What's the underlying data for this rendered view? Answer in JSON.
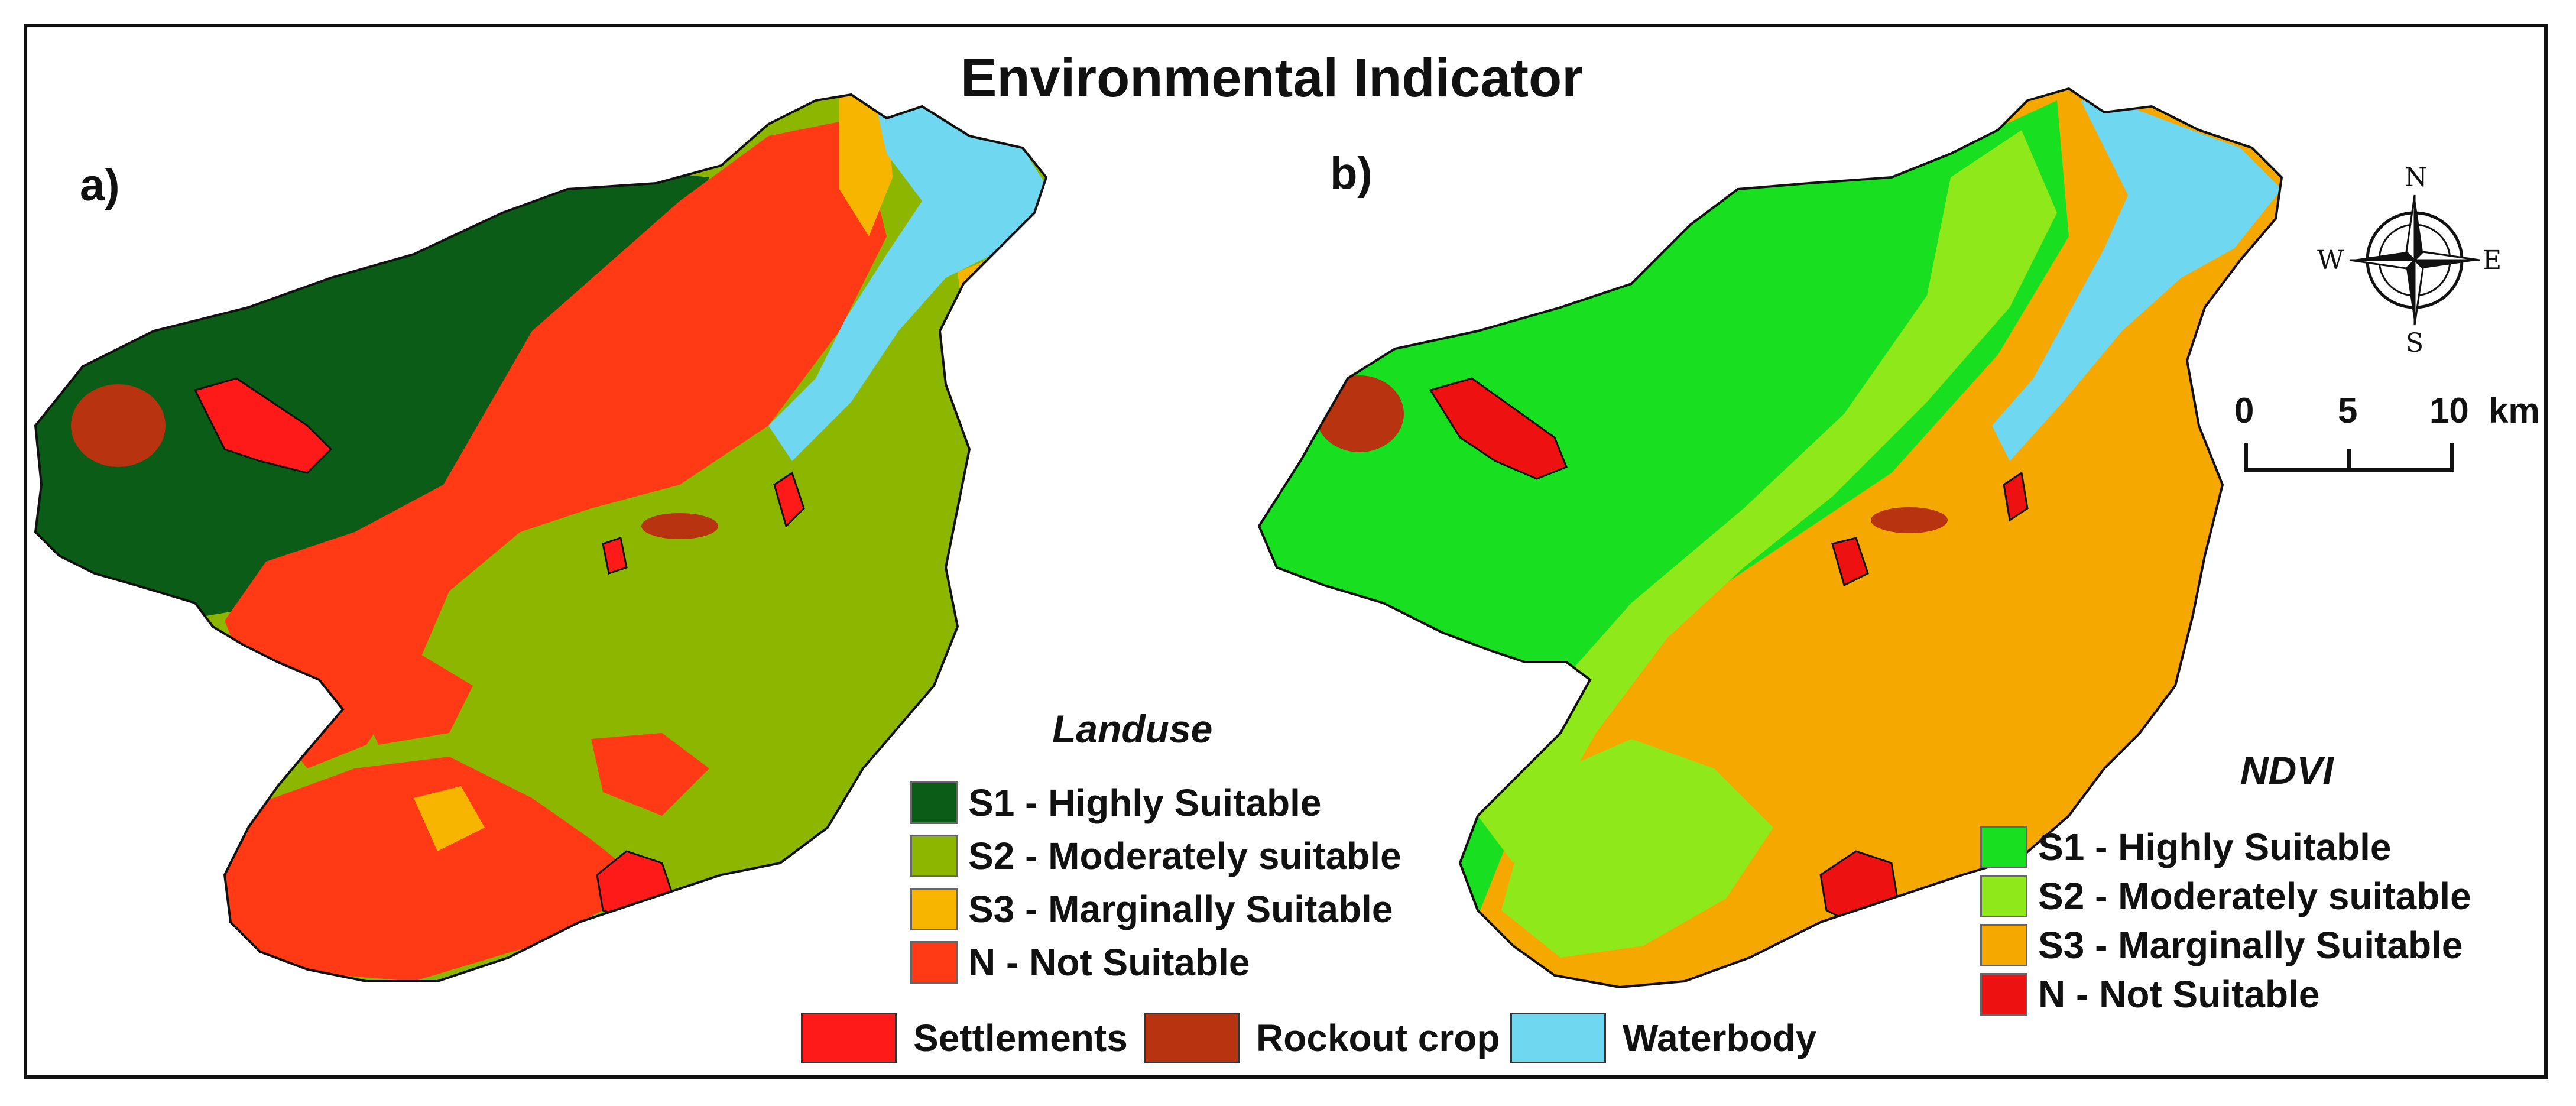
{
  "title": "Environmental Indicator",
  "panels": {
    "a": {
      "label": "a)",
      "legend_title": "Landuse"
    },
    "b": {
      "label": "b)",
      "legend_title": "NDVI"
    }
  },
  "classes": {
    "landuse": [
      {
        "label": "S1 - Highly Suitable",
        "color": "#0b5c16"
      },
      {
        "label": "S2 - Moderately suitable",
        "color": "#8db600"
      },
      {
        "label": "S3 - Marginally Suitable",
        "color": "#f7b500"
      },
      {
        "label": "N - Not Suitable",
        "color": "#ff3a14"
      }
    ],
    "ndvi": [
      {
        "label": "S1 - Highly Suitable",
        "color": "#18e020"
      },
      {
        "label": "S2 - Moderately suitable",
        "color": "#8ee81a"
      },
      {
        "label": "S3 - Marginally Suitable",
        "color": "#f5a800"
      },
      {
        "label": "N - Not Suitable",
        "color": "#ee1111"
      }
    ]
  },
  "common_legend": [
    {
      "label": "Settlements",
      "color": "#ff1a1a"
    },
    {
      "label": "Rockout crop",
      "color": "#b83310"
    },
    {
      "label": "Waterbody",
      "color": "#6fd7f0"
    }
  ],
  "scale_bar": {
    "ticks": [
      "0",
      "5",
      "10"
    ],
    "unit": "km"
  },
  "north_arrow": {
    "n": "N",
    "s": "S",
    "e": "E",
    "w": "W"
  }
}
